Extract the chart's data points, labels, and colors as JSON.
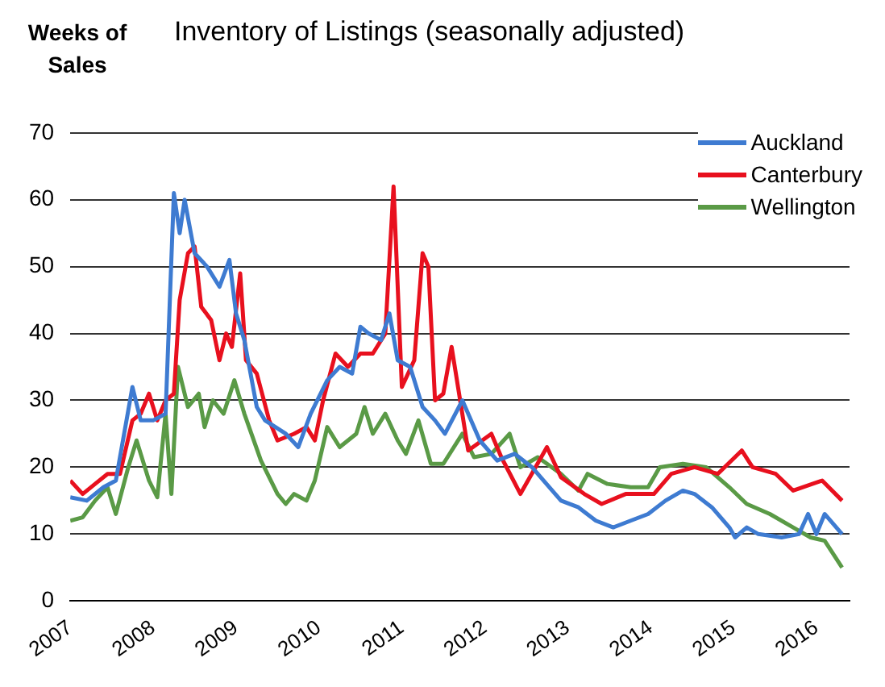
{
  "chart_data": {
    "type": "line",
    "title": "Inventory of Listings (seasonally adjusted)",
    "ylabel": "Weeks of Sales",
    "xlim": [
      2007,
      2016.4
    ],
    "xticks": [
      2007,
      2008,
      2009,
      2010,
      2011,
      2012,
      2013,
      2014,
      2015,
      2016
    ],
    "ylim": [
      0,
      70
    ],
    "yticks": [
      0,
      10,
      20,
      30,
      40,
      50,
      60,
      70
    ],
    "grid": "y",
    "legend": "top right",
    "marker": "none",
    "line_style": "solid",
    "series": [
      {
        "name": "Auckland",
        "color": "#3e7bd1",
        "x": [
          2007.0,
          2007.2,
          2007.4,
          2007.55,
          2007.75,
          2007.85,
          2008.0,
          2008.15,
          2008.25,
          2008.32,
          2008.38,
          2008.5,
          2008.65,
          2008.8,
          2008.92,
          2009.0,
          2009.1,
          2009.25,
          2009.35,
          2009.6,
          2009.75,
          2009.9,
          2010.1,
          2010.25,
          2010.4,
          2010.5,
          2010.6,
          2010.75,
          2010.85,
          2010.95,
          2011.1,
          2011.25,
          2011.4,
          2011.52,
          2011.73,
          2011.94,
          2012.15,
          2012.36,
          2012.57,
          2012.78,
          2012.92,
          2013.13,
          2013.34,
          2013.55,
          2013.76,
          2013.97,
          2014.18,
          2014.39,
          2014.53,
          2014.74,
          2014.95,
          2015.02,
          2015.16,
          2015.3,
          2015.58,
          2015.79,
          2015.9,
          2016.0,
          2016.1,
          2016.31
        ],
        "values": [
          15.5,
          15,
          17,
          18,
          32,
          27,
          27,
          28,
          61,
          55,
          60,
          52,
          50,
          47,
          51,
          43,
          39,
          29,
          27,
          25,
          23,
          28,
          33,
          35,
          34,
          41,
          40,
          39,
          43,
          36,
          35,
          29,
          27,
          25,
          30,
          24,
          21,
          22,
          20,
          17,
          15,
          14,
          12,
          11,
          12,
          13,
          15,
          16.5,
          16,
          14,
          11,
          9.5,
          11,
          10,
          9.5,
          10,
          13,
          10,
          13,
          10
        ]
      },
      {
        "name": "Canterbury",
        "color": "#e8101e",
        "x": [
          2007.0,
          2007.15,
          2007.3,
          2007.45,
          2007.6,
          2007.75,
          2007.85,
          2007.95,
          2008.05,
          2008.15,
          2008.25,
          2008.32,
          2008.42,
          2008.5,
          2008.58,
          2008.7,
          2008.8,
          2008.88,
          2008.95,
          2009.05,
          2009.12,
          2009.25,
          2009.4,
          2009.5,
          2009.7,
          2009.85,
          2009.95,
          2010.05,
          2010.2,
          2010.35,
          2010.5,
          2010.65,
          2010.8,
          2010.9,
          2011.0,
          2011.15,
          2011.25,
          2011.32,
          2011.4,
          2011.5,
          2011.6,
          2011.8,
          2012.08,
          2012.2,
          2012.43,
          2012.75,
          2012.92,
          2013.2,
          2013.41,
          2013.7,
          2014.04,
          2014.25,
          2014.53,
          2014.81,
          2015.1,
          2015.23,
          2015.51,
          2015.72,
          2016.07,
          2016.31
        ],
        "values": [
          18,
          16,
          17.5,
          19,
          19,
          27,
          28,
          31,
          27,
          30,
          31,
          45,
          52,
          53,
          44,
          42,
          36,
          40,
          38,
          49,
          36,
          34,
          27,
          24,
          25,
          26,
          24,
          30,
          37,
          35,
          37,
          37,
          40,
          62,
          32,
          36,
          52,
          50,
          30,
          31,
          38,
          22.5,
          25,
          21.5,
          16,
          23,
          18.5,
          16,
          14.5,
          16,
          16,
          19,
          20,
          19,
          22.5,
          20,
          19,
          16.5,
          18,
          15
        ]
      },
      {
        "name": "Wellington",
        "color": "#5a9a46",
        "x": [
          2007.0,
          2007.15,
          2007.3,
          2007.45,
          2007.55,
          2007.7,
          2007.8,
          2007.95,
          2008.05,
          2008.15,
          2008.22,
          2008.3,
          2008.42,
          2008.55,
          2008.62,
          2008.72,
          2008.85,
          2008.98,
          2009.1,
          2009.3,
          2009.5,
          2009.6,
          2009.7,
          2009.85,
          2009.95,
          2010.1,
          2010.25,
          2010.45,
          2010.55,
          2010.65,
          2010.8,
          2010.95,
          2011.05,
          2011.2,
          2011.35,
          2011.5,
          2011.73,
          2011.87,
          2012.08,
          2012.3,
          2012.43,
          2012.64,
          2012.92,
          2013.13,
          2013.24,
          2013.48,
          2013.76,
          2013.97,
          2014.11,
          2014.39,
          2014.67,
          2014.95,
          2015.16,
          2015.44,
          2015.72,
          2015.93,
          2016.1,
          2016.31
        ],
        "values": [
          12,
          12.5,
          15,
          17,
          13,
          20,
          24,
          18,
          15.5,
          28,
          16,
          35,
          29,
          31,
          26,
          30,
          28,
          33,
          28,
          21,
          16,
          14.5,
          16,
          15,
          18,
          26,
          23,
          25,
          29,
          25,
          28,
          24,
          22,
          27,
          20.5,
          20.5,
          25,
          21.5,
          22,
          25,
          20,
          21.5,
          19,
          16.5,
          19,
          17.5,
          17,
          17,
          20,
          20.5,
          20,
          17,
          14.5,
          13,
          11,
          9.5,
          9,
          5
        ]
      }
    ]
  }
}
